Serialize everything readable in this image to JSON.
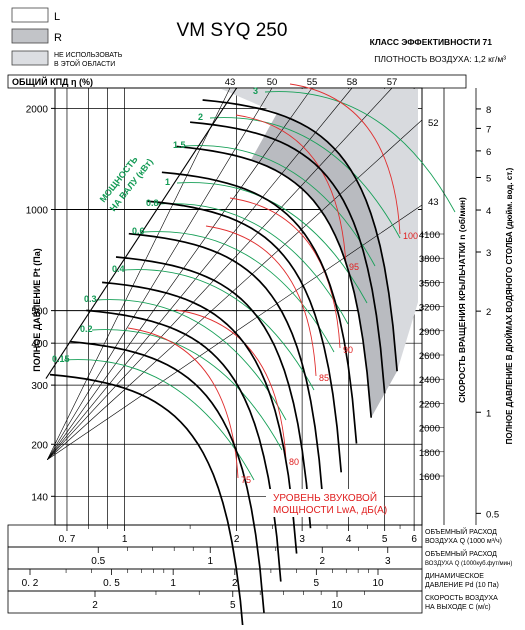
{
  "title": "VM SYQ 250",
  "legend": {
    "l_label": "L",
    "r_label": "R",
    "na_line1": "НЕ ИСПОЛЬЗОВАТЬ",
    "na_line2": "В ЭТОЙ ОБЛАСТИ",
    "colors": {
      "l": "#ffffff",
      "r": "#c2c4c8",
      "na": "#dcdee2"
    }
  },
  "efficiency_class": "КЛАСС ЭФФЕКТИВНОСТИ 71",
  "air_density": "ПЛОТНОСТЬ ВОЗДУХА: 1,2 кг/м³",
  "efficiency_header": "ОБЩИЙ КПД η (%)",
  "efficiency_values": [
    "43",
    "50",
    "55",
    "58",
    "57"
  ],
  "efficiency_right": [
    "52",
    "43"
  ],
  "left_axis_label": "ПОЛНОЕ ДАВЛЕНИЕ Pt (Па)",
  "left_ticks": [
    "2000",
    "1000",
    "500",
    "400",
    "300",
    "200",
    "140"
  ],
  "right_inches_label": "ПОЛНОЕ ДАВЛЕНИЕ В ДЮЙМАХ ВОДЯНОГО СТОЛБА (дюйм. вод. ст.)",
  "right_inches_ticks": [
    "8",
    "7",
    "6",
    "5",
    "4",
    "3",
    "2",
    "1",
    "0.5"
  ],
  "speed_label": "СКОРОСТЬ ВРАЩЕНИЯ КРЫЛЬЧАТКИ n (об/мин)",
  "speed_ticks": [
    "4100",
    "3800",
    "3500",
    "3200",
    "2900",
    "2600",
    "2400",
    "2200",
    "2000",
    "1800",
    "1600"
  ],
  "power_label_line1": "МОЩНОСТЬ",
  "power_label_line2": "НА ВАЛУ (кВт)",
  "power_values": [
    "3",
    "2",
    "1.5",
    "1",
    "0.8",
    "0.6",
    "0.4",
    "0.3",
    "0.2",
    "0.15"
  ],
  "sound_label_line1": "УРОВЕНЬ ЗВУКОВОЙ",
  "sound_label_line2": "МОЩНОСТИ LwA, дБ(A)",
  "sound_values": [
    "100",
    "95",
    "90",
    "85",
    "80",
    "75"
  ],
  "flow_m3": {
    "label_line1": "ОБЪЕМНЫЙ РАСХОД",
    "label_line2": "ВОЗДУХА Q (1000 м³/ч)",
    "ticks": [
      "0. 7",
      "1",
      "2",
      "3",
      "4",
      "5",
      "6"
    ]
  },
  "flow_cfm": {
    "label_line1": "ОБЪЕМНЫЙ РАСХОД",
    "label_line2": "ВОЗДУХА Q (1000куб.фут/мин)",
    "ticks": [
      "0.5",
      "1",
      "2",
      "3"
    ]
  },
  "dyn_pressure": {
    "label_line1": "ДИНАМИЧЕСКОЕ",
    "label_line2": "ДАВЛЕНИЕ Pd (10 Па)",
    "ticks": [
      "0. 2",
      "0. 5",
      "1",
      "2",
      "5",
      "10"
    ]
  },
  "outlet_speed": {
    "label_line1": "СКОРОСТЬ ВОЗДУХА",
    "label_line2": "НА ВЫХОДЕ C (м/с)",
    "ticks": [
      "2",
      "5",
      "10"
    ]
  },
  "chart_data": {
    "type": "line",
    "title": "VM SYQ 250",
    "xlabel": "ОБЪЕМНЫЙ РАСХОД ВОЗДУХА Q (1000 м³/ч)",
    "ylabel": "ПОЛНОЕ ДАВЛЕНИЕ Pt (Па)",
    "x_scale": "log",
    "y_scale": "log",
    "xlim": [
      0.65,
      6.3
    ],
    "ylim": [
      115,
      2300
    ],
    "grid": true,
    "series_kind": "fan speed curves (n, об/мин)",
    "speeds_rpm": [
      4100,
      3800,
      3500,
      3200,
      2900,
      2600,
      2400,
      2200,
      2000,
      1800,
      1600
    ],
    "shutoff_pressure_pa": [
      2200,
      1890,
      1600,
      1340,
      1100,
      880,
      750,
      630,
      520,
      420,
      335
    ],
    "end_flow_1000m3h": [
      5.4,
      5.0,
      4.6,
      4.2,
      3.82,
      3.42,
      3.16,
      2.9,
      2.63,
      2.37,
      2.1
    ],
    "power_kw_lines": [
      3,
      2,
      1.5,
      1,
      0.8,
      0.6,
      0.4,
      0.3,
      0.2,
      0.15
    ],
    "sound_dba_lines": [
      100,
      95,
      90,
      85,
      80,
      75
    ],
    "efficiency_pct": [
      43,
      50,
      55,
      58,
      57,
      52,
      43
    ]
  }
}
